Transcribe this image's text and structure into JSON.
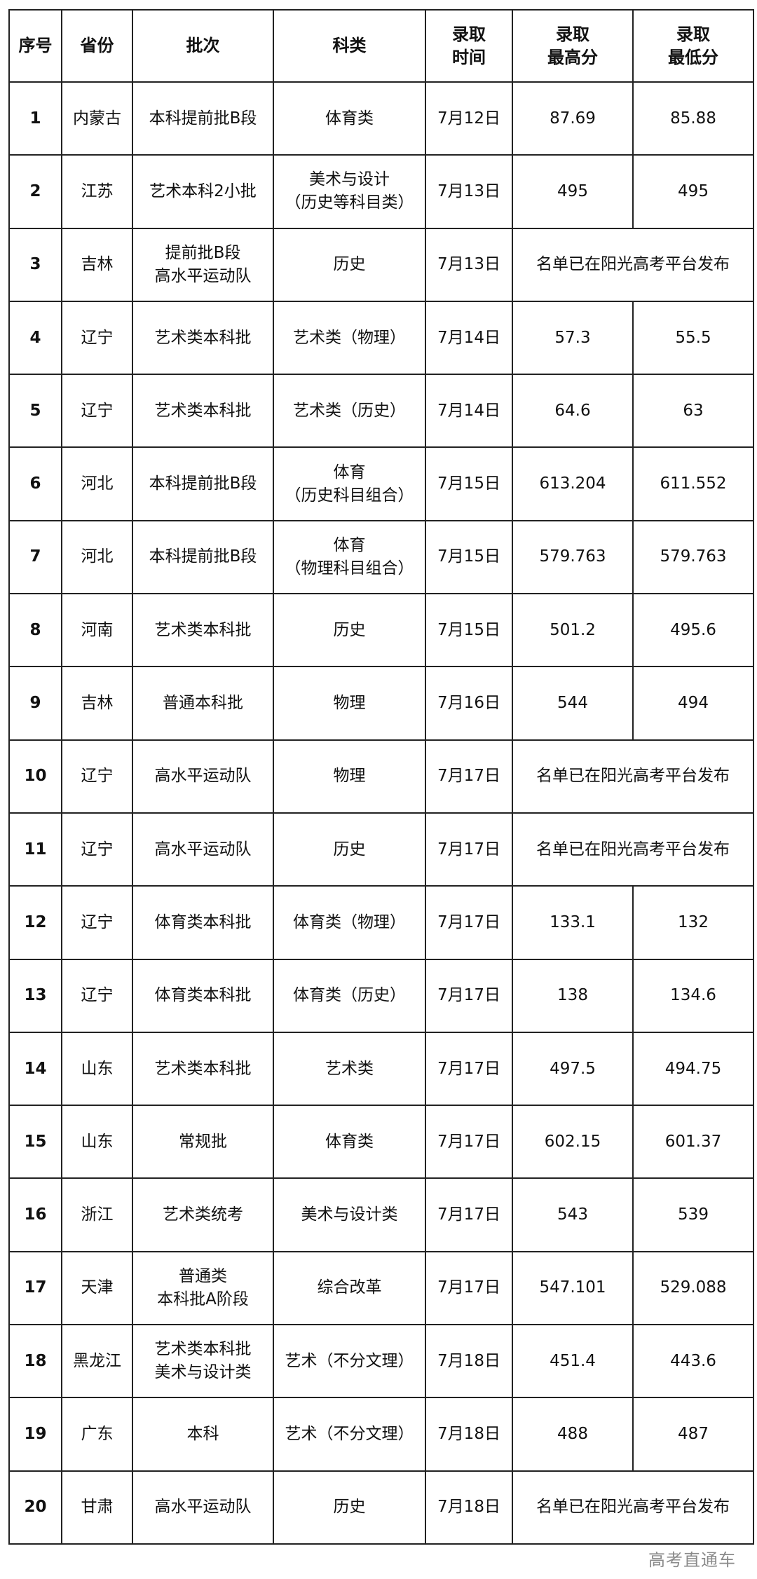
{
  "table": {
    "headers": [
      [
        "序号"
      ],
      [
        "省份"
      ],
      [
        "批次"
      ],
      [
        "科类"
      ],
      [
        "录取",
        "时间"
      ],
      [
        "录取",
        "最高分"
      ],
      [
        "录取",
        "最低分"
      ]
    ],
    "rows": [
      {
        "no": "1",
        "province": "内蒙古",
        "batch": [
          "本科提前批B段"
        ],
        "subject": [
          "体育类"
        ],
        "date": "7月12日",
        "max": "87.69",
        "min": "85.88"
      },
      {
        "no": "2",
        "province": "江苏",
        "batch": [
          "艺术本科2小批"
        ],
        "subject": [
          "美术与设计",
          "（历史等科目类）"
        ],
        "date": "7月13日",
        "max": "495",
        "min": "495"
      },
      {
        "no": "3",
        "province": "吉林",
        "batch": [
          "提前批B段",
          "高水平运动队"
        ],
        "subject": [
          "历史"
        ],
        "date": "7月13日",
        "note": "名单已在阳光高考平台发布"
      },
      {
        "no": "4",
        "province": "辽宁",
        "batch": [
          "艺术类本科批"
        ],
        "subject": [
          "艺术类（物理）"
        ],
        "date": "7月14日",
        "max": "57.3",
        "min": "55.5"
      },
      {
        "no": "5",
        "province": "辽宁",
        "batch": [
          "艺术类本科批"
        ],
        "subject": [
          "艺术类（历史）"
        ],
        "date": "7月14日",
        "max": "64.6",
        "min": "63"
      },
      {
        "no": "6",
        "province": "河北",
        "batch": [
          "本科提前批B段"
        ],
        "subject": [
          "体育",
          "（历史科目组合）"
        ],
        "date": "7月15日",
        "max": "613.204",
        "min": "611.552"
      },
      {
        "no": "7",
        "province": "河北",
        "batch": [
          "本科提前批B段"
        ],
        "subject": [
          "体育",
          "（物理科目组合）"
        ],
        "date": "7月15日",
        "max": "579.763",
        "min": "579.763"
      },
      {
        "no": "8",
        "province": "河南",
        "batch": [
          "艺术类本科批"
        ],
        "subject": [
          "历史"
        ],
        "date": "7月15日",
        "max": "501.2",
        "min": "495.6"
      },
      {
        "no": "9",
        "province": "吉林",
        "batch": [
          "普通本科批"
        ],
        "subject": [
          "物理"
        ],
        "date": "7月16日",
        "max": "544",
        "min": "494"
      },
      {
        "no": "10",
        "province": "辽宁",
        "batch": [
          "高水平运动队"
        ],
        "subject": [
          "物理"
        ],
        "date": "7月17日",
        "note": "名单已在阳光高考平台发布"
      },
      {
        "no": "11",
        "province": "辽宁",
        "batch": [
          "高水平运动队"
        ],
        "subject": [
          "历史"
        ],
        "date": "7月17日",
        "note": "名单已在阳光高考平台发布"
      },
      {
        "no": "12",
        "province": "辽宁",
        "batch": [
          "体育类本科批"
        ],
        "subject": [
          "体育类（物理）"
        ],
        "date": "7月17日",
        "max": "133.1",
        "min": "132"
      },
      {
        "no": "13",
        "province": "辽宁",
        "batch": [
          "体育类本科批"
        ],
        "subject": [
          "体育类（历史）"
        ],
        "date": "7月17日",
        "max": "138",
        "min": "134.6"
      },
      {
        "no": "14",
        "province": "山东",
        "batch": [
          "艺术类本科批"
        ],
        "subject": [
          "艺术类"
        ],
        "date": "7月17日",
        "max": "497.5",
        "min": "494.75"
      },
      {
        "no": "15",
        "province": "山东",
        "batch": [
          "常规批"
        ],
        "subject": [
          "体育类"
        ],
        "date": "7月17日",
        "max": "602.15",
        "min": "601.37"
      },
      {
        "no": "16",
        "province": "浙江",
        "batch": [
          "艺术类统考"
        ],
        "subject": [
          "美术与设计类"
        ],
        "date": "7月17日",
        "max": "543",
        "min": "539"
      },
      {
        "no": "17",
        "province": "天津",
        "batch": [
          "普通类",
          "本科批A阶段"
        ],
        "subject": [
          "综合改革"
        ],
        "date": "7月17日",
        "max": "547.101",
        "min": "529.088"
      },
      {
        "no": "18",
        "province": "黑龙江",
        "batch": [
          "艺术类本科批",
          "美术与设计类"
        ],
        "subject": [
          "艺术（不分文理）"
        ],
        "date": "7月18日",
        "max": "451.4",
        "min": "443.6"
      },
      {
        "no": "19",
        "province": "广东",
        "batch": [
          "本科"
        ],
        "subject": [
          "艺术（不分文理）"
        ],
        "date": "7月18日",
        "max": "488",
        "min": "487"
      },
      {
        "no": "20",
        "province": "甘肃",
        "batch": [
          "高水平运动队"
        ],
        "subject": [
          "历史"
        ],
        "date": "7月18日",
        "note": "名单已在阳光高考平台发布"
      }
    ]
  },
  "watermark": "高考直通车"
}
